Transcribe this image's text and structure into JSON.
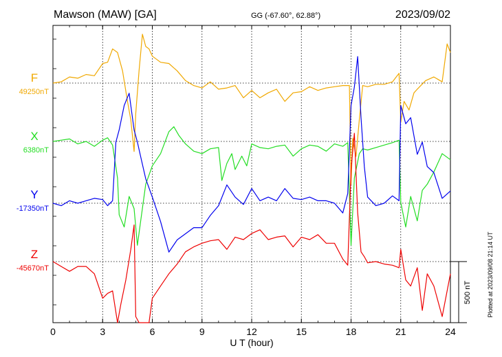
{
  "header": {
    "station": "Mawson (MAW)  [GA]",
    "coords": "GG (-67.60°,  62.88°)",
    "date": "2023/09/02"
  },
  "footer_note": "Plotted at 2023/09/08 21:14 UT",
  "chart_data": {
    "type": "line",
    "title": "Mawson (MAW)  [GA]",
    "xlabel": "U T (hour)",
    "xlim": [
      0,
      24
    ],
    "x_ticks": [
      "0",
      "3",
      "6",
      "9",
      "12",
      "15",
      "18",
      "21",
      "24"
    ],
    "grid": true,
    "scale_bar": {
      "label": "500 nT",
      "value_nT": 500
    },
    "series": [
      {
        "name": "F",
        "baseline_label": "49250nT",
        "baseline_nT": 49250,
        "color": "#f0a800",
        "x": [
          0,
          0.5,
          1,
          1.5,
          2,
          2.5,
          3,
          3.3,
          3.6,
          3.9,
          4.2,
          4.5,
          4.7,
          4.9,
          5.0,
          5.2,
          5.4,
          5.6,
          5.8,
          6.0,
          6.5,
          7,
          7.5,
          8,
          8.5,
          9,
          9.5,
          10,
          10.5,
          11,
          11.5,
          12,
          12.5,
          13,
          13.5,
          14,
          14.5,
          15,
          15.5,
          16,
          16.5,
          17,
          17.5,
          17.9,
          18.0,
          18.1,
          18.3,
          18.5,
          18.7,
          19,
          19.5,
          20,
          20.5,
          20.9,
          21.0,
          21.2,
          21.5,
          21.8,
          22,
          22.5,
          23,
          23.5,
          23.8,
          24
        ],
        "y": [
          0,
          10,
          50,
          40,
          70,
          60,
          160,
          170,
          280,
          250,
          100,
          -150,
          -300,
          -560,
          -250,
          100,
          400,
          300,
          280,
          220,
          170,
          160,
          100,
          20,
          -20,
          -40,
          10,
          -50,
          -40,
          -20,
          -120,
          -60,
          -120,
          -80,
          -50,
          -150,
          -80,
          -70,
          -30,
          -60,
          -40,
          -30,
          -20,
          -20,
          -830,
          -450,
          -600,
          -300,
          -20,
          -30,
          -10,
          -10,
          10,
          80,
          -320,
          -150,
          -220,
          -80,
          -50,
          20,
          50,
          10,
          320,
          250
        ]
      },
      {
        "name": "X",
        "baseline_label": "6380nT",
        "baseline_nT": 6380,
        "color": "#22dd22",
        "x": [
          0,
          0.5,
          1,
          1.5,
          2,
          2.5,
          3,
          3.3,
          3.6,
          3.9,
          4.0,
          4.3,
          4.6,
          4.9,
          5.1,
          5.3,
          5.6,
          6.0,
          6.5,
          7,
          7.3,
          7.6,
          8,
          8.5,
          9,
          9.5,
          10,
          10.2,
          10.5,
          10.8,
          11,
          11.4,
          11.7,
          12,
          12.5,
          13,
          13.5,
          14,
          14.5,
          15,
          15.5,
          16,
          16.5,
          17,
          17.5,
          17.8,
          18.0,
          18.2,
          18.5,
          18.7,
          19,
          19.5,
          20,
          20.5,
          20.9,
          21.0,
          21.3,
          21.6,
          22,
          22.3,
          22.6,
          23,
          23.5,
          24
        ],
        "y": [
          0,
          10,
          20,
          -20,
          0,
          -40,
          10,
          30,
          -30,
          -300,
          -600,
          -700,
          -450,
          -550,
          -850,
          -650,
          -350,
          -200,
          -100,
          80,
          120,
          50,
          -20,
          -80,
          -100,
          -60,
          -50,
          -320,
          -180,
          -100,
          -230,
          -120,
          -200,
          -20,
          -50,
          -60,
          -40,
          -30,
          -120,
          -60,
          -30,
          -40,
          -80,
          -20,
          -40,
          -10,
          -850,
          -300,
          -100,
          -60,
          -70,
          -50,
          -30,
          -10,
          10,
          -500,
          -700,
          -450,
          -650,
          -400,
          -350,
          -250,
          -100,
          -150
        ]
      },
      {
        "name": "Y",
        "baseline_label": "-17350nT",
        "baseline_nT": -17350,
        "color": "#0000ee",
        "x": [
          0,
          0.5,
          1,
          1.5,
          2,
          2.5,
          3,
          3.3,
          3.6,
          3.8,
          4.0,
          4.3,
          4.6,
          4.9,
          5.1,
          5.3,
          5.6,
          6.0,
          6.5,
          7,
          7.5,
          8,
          8.5,
          9,
          9.5,
          10,
          10.5,
          11,
          11.5,
          12,
          12.5,
          13,
          13.5,
          14,
          14.5,
          15,
          15.5,
          16,
          16.5,
          17,
          17.5,
          17.8,
          18.0,
          18.2,
          18.4,
          18.6,
          18.8,
          19,
          19.5,
          20,
          20.5,
          20.9,
          21.0,
          21.3,
          21.6,
          22,
          22.3,
          22.6,
          23,
          23.5,
          24
        ],
        "y": [
          0,
          -20,
          20,
          0,
          20,
          40,
          30,
          -20,
          20,
          500,
          600,
          800,
          900,
          600,
          500,
          380,
          200,
          50,
          -150,
          -400,
          -300,
          -250,
          -200,
          -200,
          -100,
          -20,
          150,
          50,
          -10,
          120,
          20,
          50,
          20,
          120,
          40,
          30,
          50,
          20,
          20,
          0,
          -80,
          80,
          800,
          950,
          1200,
          700,
          300,
          50,
          -20,
          0,
          60,
          20,
          800,
          650,
          700,
          400,
          500,
          300,
          250,
          40,
          100
        ]
      },
      {
        "name": "Z",
        "baseline_label": "-45670nT",
        "baseline_nT": -45670,
        "color": "#ee0000",
        "x": [
          0,
          0.5,
          1,
          1.5,
          2,
          2.5,
          3,
          3.3,
          3.6,
          3.9,
          4.1,
          4.4,
          4.7,
          4.9,
          5.0,
          5.2,
          5.5,
          5.8,
          6.0,
          6.5,
          7,
          7.5,
          8,
          8.5,
          9,
          9.5,
          10,
          10.5,
          11,
          11.5,
          12,
          12.5,
          13,
          13.5,
          14,
          14.5,
          15,
          15.5,
          16,
          16.5,
          17,
          17.5,
          17.8,
          18.0,
          18.2,
          18.4,
          18.6,
          18.8,
          19,
          19.5,
          20,
          20.5,
          20.9,
          21.0,
          21.3,
          21.6,
          22,
          22.3,
          22.6,
          23,
          23.5,
          24
        ],
        "y": [
          0,
          -40,
          -80,
          -40,
          -40,
          -100,
          -300,
          -260,
          -240,
          -500,
          -350,
          -150,
          100,
          300,
          -450,
          -750,
          -500,
          -500,
          -300,
          -200,
          -100,
          -20,
          80,
          120,
          150,
          170,
          180,
          100,
          200,
          180,
          230,
          260,
          180,
          200,
          210,
          120,
          200,
          180,
          220,
          150,
          150,
          20,
          -30,
          750,
          1050,
          400,
          80,
          40,
          -10,
          0,
          -20,
          -30,
          -50,
          100,
          -150,
          -200,
          -50,
          -400,
          -100,
          -200,
          -450,
          -100
        ]
      }
    ]
  }
}
